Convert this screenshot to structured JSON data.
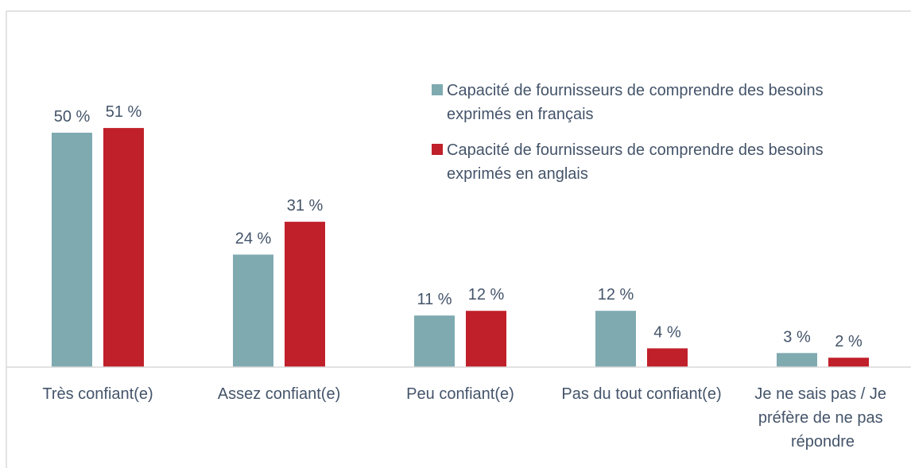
{
  "chart_data": {
    "type": "bar",
    "categories": [
      "Très confiant(e)",
      "Assez confiant(e)",
      "Peu confiant(e)",
      "Pas du tout confiant(e)",
      "Je ne sais pas / Je préfère de ne pas répondre"
    ],
    "series": [
      {
        "name": "Capacité de fournisseurs de comprendre des besoins exprimés en français",
        "color": "#7faab0",
        "values": [
          50,
          24,
          11,
          12,
          3
        ],
        "value_labels": [
          "50 %",
          "24 %",
          "11 %",
          "12 %",
          "3 %"
        ]
      },
      {
        "name": "Capacité de fournisseurs de comprendre des besoins exprimés en anglais",
        "color": "#c0202a",
        "values": [
          51,
          31,
          12,
          4,
          2
        ],
        "value_labels": [
          "51 %",
          "31 %",
          "12 %",
          "4 %",
          "2 %"
        ]
      }
    ],
    "legend": "top-right"
  }
}
